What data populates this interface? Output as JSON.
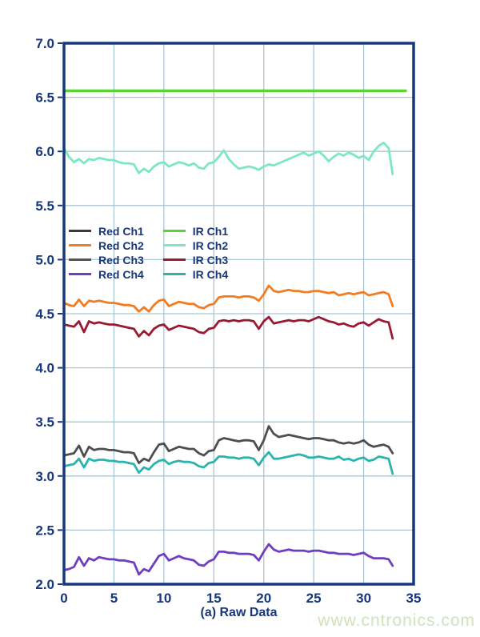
{
  "watermark": "www.cntronics.com",
  "colors": {
    "axis": "#16367d",
    "text": "#16367d",
    "grid": "#a9c7d2",
    "background": "#ffffff",
    "watermark": "#cfe3ba"
  },
  "legend": {
    "items": [
      {
        "label": "Red Ch1",
        "color": "#3b3b3d"
      },
      {
        "label": "IR Ch1",
        "color": "#5bd335"
      },
      {
        "label": "Red Ch2",
        "color": "#f37c21"
      },
      {
        "label": "IR Ch2",
        "color": "#7ce7c4"
      },
      {
        "label": "Red Ch3",
        "color": "#555557"
      },
      {
        "label": "IR Ch3",
        "color": "#9a1a33"
      },
      {
        "label": "Red Ch4",
        "color": "#6e3ec0"
      },
      {
        "label": "IR Ch4",
        "color": "#2ab4ad"
      }
    ]
  },
  "chart_data": {
    "type": "line",
    "title": "",
    "xlabel": "(a) Raw Data",
    "ylabel": "",
    "xlim": [
      0,
      35
    ],
    "ylim": [
      2.0,
      7.0
    ],
    "xtick_labels": [
      "0",
      "5",
      "10",
      "15",
      "20",
      "25",
      "30",
      "35"
    ],
    "ytick_labels": [
      "7.0",
      "6.5",
      "6.0",
      "5.5",
      "5.0",
      "4.5",
      "4.0",
      "3.5",
      "3.0",
      "2.5",
      "2.0"
    ],
    "grid": true,
    "legend_position": "inside-upper-left",
    "x": [
      0,
      0.5,
      1,
      1.5,
      2,
      2.5,
      3,
      3.5,
      4,
      4.5,
      5,
      5.5,
      6,
      6.5,
      7,
      7.5,
      8,
      8.5,
      9,
      9.5,
      10,
      10.5,
      11,
      11.5,
      12,
      12.5,
      13,
      13.5,
      14,
      14.5,
      15,
      15.5,
      16,
      16.5,
      17,
      17.5,
      18,
      18.5,
      19,
      19.5,
      20,
      20.5,
      21,
      21.5,
      22,
      22.5,
      23,
      23.5,
      24,
      24.5,
      25,
      25.5,
      26,
      26.5,
      27,
      27.5,
      28,
      28.5,
      29,
      29.5,
      30,
      30.5,
      31,
      31.5,
      32,
      32.5,
      32.9
    ],
    "series": [
      {
        "name": "IR Ch1",
        "color": "#5bd335",
        "flat": true,
        "y_const": 6.56,
        "x_start": 0,
        "x_end": 34.2,
        "width": 3.4
      },
      {
        "name": "IR Ch2",
        "color": "#7ce7c4",
        "width": 2.8,
        "y": [
          6.03,
          5.95,
          5.9,
          5.93,
          5.89,
          5.93,
          5.92,
          5.94,
          5.93,
          5.92,
          5.92,
          5.9,
          5.89,
          5.89,
          5.88,
          5.8,
          5.84,
          5.81,
          5.86,
          5.89,
          5.9,
          5.86,
          5.88,
          5.9,
          5.89,
          5.87,
          5.89,
          5.85,
          5.84,
          5.89,
          5.9,
          5.95,
          6.01,
          5.93,
          5.88,
          5.84,
          5.85,
          5.86,
          5.85,
          5.83,
          5.86,
          5.88,
          5.87,
          5.89,
          5.91,
          5.93,
          5.95,
          5.97,
          5.99,
          5.96,
          5.98,
          6.0,
          5.96,
          5.91,
          5.95,
          5.98,
          5.96,
          5.99,
          5.97,
          5.94,
          5.96,
          5.92,
          6.0,
          6.05,
          6.08,
          6.03,
          5.79
        ]
      },
      {
        "name": "Red Ch2",
        "color": "#f37c21",
        "width": 2.8,
        "y": [
          4.6,
          4.58,
          4.57,
          4.63,
          4.57,
          4.62,
          4.61,
          4.62,
          4.61,
          4.6,
          4.6,
          4.59,
          4.58,
          4.58,
          4.57,
          4.52,
          4.56,
          4.52,
          4.58,
          4.62,
          4.63,
          4.57,
          4.59,
          4.61,
          4.6,
          4.59,
          4.59,
          4.56,
          4.55,
          4.58,
          4.59,
          4.65,
          4.66,
          4.66,
          4.66,
          4.65,
          4.66,
          4.66,
          4.65,
          4.62,
          4.68,
          4.76,
          4.71,
          4.7,
          4.71,
          4.72,
          4.71,
          4.71,
          4.7,
          4.7,
          4.71,
          4.71,
          4.7,
          4.69,
          4.7,
          4.67,
          4.68,
          4.69,
          4.68,
          4.69,
          4.7,
          4.67,
          4.68,
          4.69,
          4.7,
          4.68,
          4.57
        ]
      },
      {
        "name": "IR Ch3",
        "color": "#9a1a33",
        "width": 2.8,
        "y": [
          4.4,
          4.39,
          4.38,
          4.43,
          4.33,
          4.43,
          4.41,
          4.42,
          4.41,
          4.4,
          4.4,
          4.39,
          4.38,
          4.37,
          4.36,
          4.29,
          4.34,
          4.3,
          4.36,
          4.39,
          4.4,
          4.35,
          4.37,
          4.39,
          4.38,
          4.37,
          4.36,
          4.33,
          4.32,
          4.36,
          4.37,
          4.43,
          4.44,
          4.43,
          4.44,
          4.43,
          4.44,
          4.44,
          4.43,
          4.36,
          4.43,
          4.47,
          4.41,
          4.42,
          4.43,
          4.44,
          4.43,
          4.44,
          4.44,
          4.43,
          4.45,
          4.47,
          4.45,
          4.43,
          4.42,
          4.4,
          4.41,
          4.39,
          4.38,
          4.41,
          4.42,
          4.39,
          4.42,
          4.45,
          4.43,
          4.42,
          4.27
        ]
      },
      {
        "name": "Red Ch3",
        "color": "#4e4e50",
        "width": 2.8,
        "y": [
          3.19,
          3.2,
          3.21,
          3.28,
          3.18,
          3.27,
          3.24,
          3.25,
          3.25,
          3.24,
          3.24,
          3.23,
          3.22,
          3.22,
          3.21,
          3.12,
          3.16,
          3.14,
          3.22,
          3.29,
          3.3,
          3.23,
          3.25,
          3.27,
          3.26,
          3.25,
          3.25,
          3.21,
          3.19,
          3.23,
          3.24,
          3.33,
          3.35,
          3.34,
          3.33,
          3.32,
          3.33,
          3.33,
          3.32,
          3.24,
          3.33,
          3.46,
          3.39,
          3.36,
          3.37,
          3.38,
          3.37,
          3.36,
          3.35,
          3.34,
          3.35,
          3.35,
          3.34,
          3.33,
          3.33,
          3.31,
          3.3,
          3.31,
          3.3,
          3.31,
          3.33,
          3.29,
          3.27,
          3.28,
          3.29,
          3.27,
          3.21
        ]
      },
      {
        "name": "IR Ch4",
        "color": "#2ab4ad",
        "width": 2.8,
        "y": [
          3.09,
          3.1,
          3.11,
          3.16,
          3.08,
          3.16,
          3.14,
          3.15,
          3.15,
          3.14,
          3.14,
          3.13,
          3.13,
          3.12,
          3.11,
          3.03,
          3.08,
          3.06,
          3.11,
          3.14,
          3.15,
          3.11,
          3.13,
          3.14,
          3.13,
          3.13,
          3.12,
          3.09,
          3.08,
          3.12,
          3.13,
          3.18,
          3.18,
          3.17,
          3.17,
          3.16,
          3.17,
          3.17,
          3.16,
          3.1,
          3.17,
          3.22,
          3.16,
          3.16,
          3.17,
          3.18,
          3.19,
          3.2,
          3.19,
          3.17,
          3.17,
          3.18,
          3.17,
          3.16,
          3.16,
          3.18,
          3.15,
          3.16,
          3.14,
          3.16,
          3.17,
          3.14,
          3.15,
          3.18,
          3.17,
          3.16,
          3.02
        ]
      },
      {
        "name": "Red Ch4",
        "color": "#6e3ec0",
        "width": 2.8,
        "y": [
          2.13,
          2.14,
          2.16,
          2.25,
          2.17,
          2.24,
          2.22,
          2.25,
          2.24,
          2.23,
          2.23,
          2.22,
          2.22,
          2.21,
          2.2,
          2.09,
          2.14,
          2.12,
          2.19,
          2.26,
          2.28,
          2.22,
          2.24,
          2.26,
          2.24,
          2.23,
          2.22,
          2.18,
          2.17,
          2.21,
          2.23,
          2.3,
          2.3,
          2.29,
          2.29,
          2.28,
          2.28,
          2.28,
          2.27,
          2.22,
          2.3,
          2.37,
          2.32,
          2.3,
          2.31,
          2.32,
          2.31,
          2.31,
          2.31,
          2.3,
          2.31,
          2.31,
          2.3,
          2.29,
          2.29,
          2.28,
          2.28,
          2.28,
          2.27,
          2.28,
          2.29,
          2.26,
          2.24,
          2.24,
          2.24,
          2.23,
          2.17
        ]
      }
    ]
  }
}
